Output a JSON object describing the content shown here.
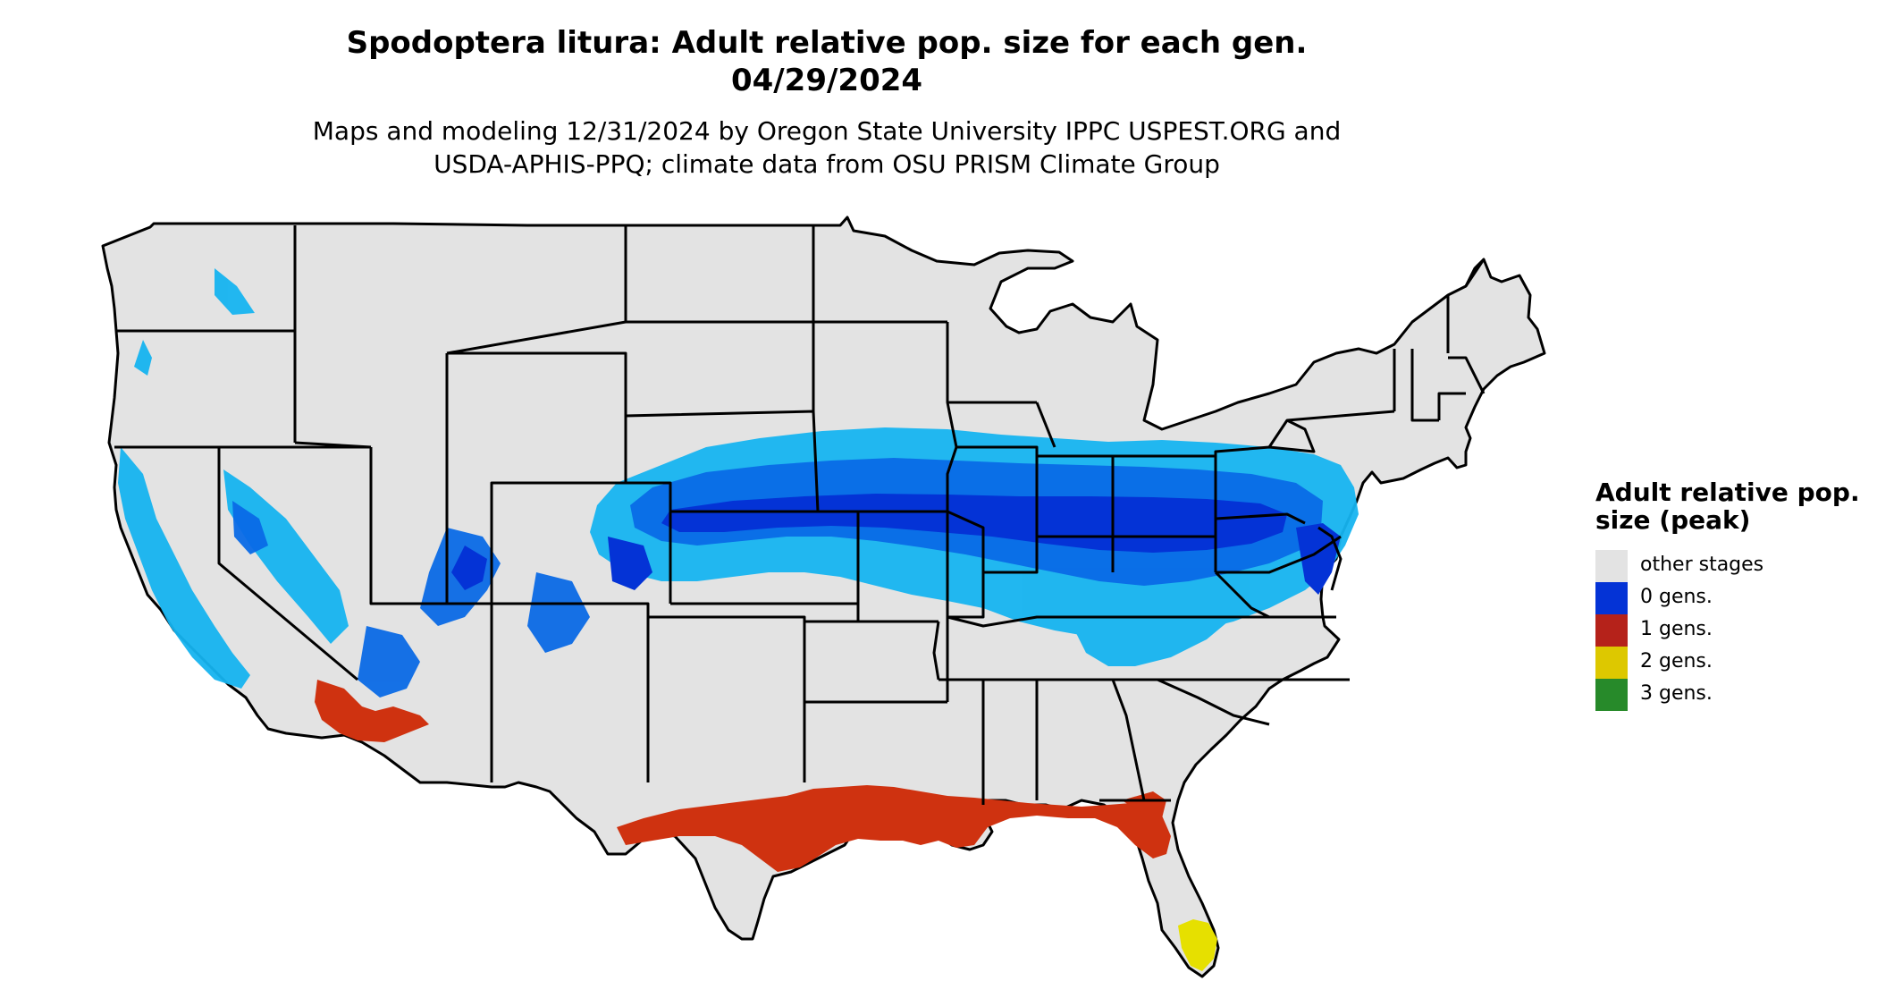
{
  "header": {
    "title_line1": "Spodoptera litura: Adult relative pop. size for each gen.",
    "title_line2": "04/29/2024",
    "subtitle_line1": "Maps and modeling 12/31/2024 by Oregon State University IPPC USPEST.ORG and",
    "subtitle_line2": "USDA-APHIS-PPQ; climate data from OSU PRISM Climate Group"
  },
  "legend": {
    "title": "Adult relative pop. size (peak)",
    "items": [
      {
        "label": "other stages",
        "color": "#e3e3e3"
      },
      {
        "label": "0 gens.",
        "color": "#0433d6"
      },
      {
        "label": "1 gens.",
        "color": "#b5221a"
      },
      {
        "label": "2 gens.",
        "color": "#ddc800"
      },
      {
        "label": "3 gens.",
        "color": "#278a2a"
      }
    ]
  },
  "map": {
    "base_color": "#e3e3e3",
    "border_color": "#000000",
    "light_blue": "#16b4f0",
    "mid_blue": "#0a6ae6",
    "dark_blue": "#0433d6",
    "red_orange": "#cf3210",
    "yellow": "#e6e000"
  }
}
